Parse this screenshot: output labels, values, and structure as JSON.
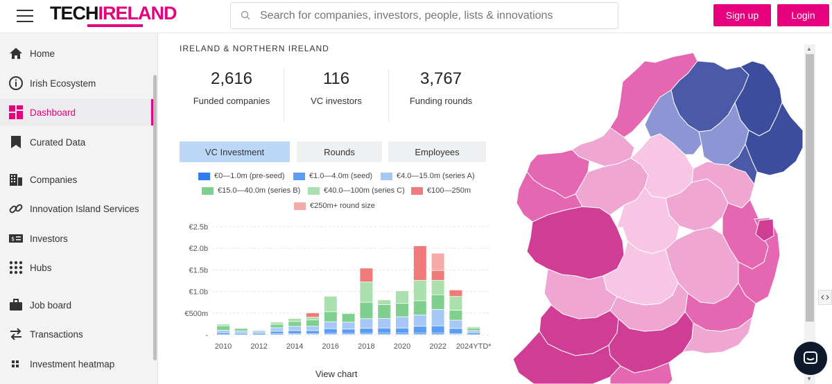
{
  "header": {
    "logo_left": "TECH",
    "logo_right": "IRELAND",
    "search_placeholder": "Search for companies, investors, people, lists & innovations",
    "signup_label": "Sign up",
    "login_label": "Login"
  },
  "sidebar": {
    "items": [
      {
        "label": "Home",
        "icon": "home-icon"
      },
      {
        "label": "Irish Ecosystem",
        "icon": "info-icon"
      },
      {
        "label": "Dashboard",
        "icon": "dashboard-icon",
        "active": true
      },
      {
        "label": "Curated Data",
        "icon": "bookmark-icon"
      },
      {
        "label": "Companies",
        "icon": "building-icon"
      },
      {
        "label": "Innovation Island Services",
        "icon": "link-icon"
      },
      {
        "label": "Investors",
        "icon": "money-icon"
      },
      {
        "label": "Hubs",
        "icon": "grid-dots-icon"
      },
      {
        "label": "Job board",
        "icon": "briefcase-icon"
      },
      {
        "label": "Transactions",
        "icon": "transfer-icon"
      },
      {
        "label": "Investment heatmap",
        "icon": "heatmap-icon"
      }
    ]
  },
  "main": {
    "region_title": "IRELAND & NORTHERN IRELAND",
    "stats": [
      {
        "value": "2,616",
        "caption": "Funded companies"
      },
      {
        "value": "116",
        "caption": "VC investors"
      },
      {
        "value": "3,767",
        "caption": "Funding rounds"
      }
    ],
    "tabs": [
      {
        "label": "VC Investment",
        "active": true
      },
      {
        "label": "Rounds",
        "active": false
      },
      {
        "label": "Employees",
        "active": false
      }
    ],
    "view_chart_label": "View chart"
  },
  "colors": {
    "brand": "#e6007e",
    "preseed": "#2f7cf0",
    "seed": "#5b9df2",
    "seriesA": "#a7c8f7",
    "seriesB": "#7fcf8e",
    "seriesC": "#a9e0ad",
    "r100": "#f07a7a",
    "r250": "#f5a9a9"
  },
  "chart_data": {
    "type": "bar",
    "stacked": true,
    "categories": [
      "2010",
      "2011",
      "2012",
      "2013",
      "2014",
      "2015",
      "2016",
      "2017",
      "2018",
      "2019",
      "2020",
      "2021",
      "2022",
      "2023",
      "2024YTD*"
    ],
    "x_tick_labels": [
      "2010",
      "2012",
      "2014",
      "2016",
      "2018",
      "2020",
      "2022",
      "2024YTD*"
    ],
    "y_tick_labels": [
      "€2.5b",
      "€2.0b",
      "€1.5b",
      "€1.0b",
      "€500m",
      ""
    ],
    "ylim": [
      0,
      2500
    ],
    "ylabel": "",
    "legend": [
      "€0—1.0m (pre-seed)",
      "€1.0—4.0m (seed)",
      "€4.0—15.0m (series A)",
      "€15.0—40.0m (series B)",
      "€40.0—100m (series C)",
      "€100—250m",
      "€250m+ round size"
    ],
    "series": [
      {
        "name": "€0—1.0m (pre-seed)",
        "color": "#2f7cf0",
        "values": [
          10,
          10,
          10,
          15,
          20,
          20,
          25,
          25,
          25,
          30,
          30,
          30,
          30,
          20,
          10
        ]
      },
      {
        "name": "€1.0—4.0m (seed)",
        "color": "#5b9df2",
        "values": [
          40,
          30,
          30,
          60,
          70,
          70,
          110,
          100,
          120,
          120,
          120,
          160,
          170,
          120,
          40
        ]
      },
      {
        "name": "€4.0—15.0m (series A)",
        "color": "#a7c8f7",
        "values": [
          50,
          40,
          40,
          80,
          100,
          100,
          160,
          160,
          220,
          220,
          260,
          260,
          380,
          190,
          40
        ]
      },
      {
        "name": "€15.0—40.0m (series B)",
        "color": "#7fcf8e",
        "values": [
          100,
          60,
          20,
          80,
          110,
          150,
          230,
          200,
          380,
          320,
          310,
          330,
          340,
          230,
          60
        ]
      },
      {
        "name": "€40.0—100m (series C)",
        "color": "#a9e0ad",
        "values": [
          40,
          0,
          0,
          50,
          70,
          60,
          360,
          0,
          470,
          110,
          290,
          470,
          330,
          320,
          30
        ]
      },
      {
        "name": "€100—250m",
        "color": "#f07a7a",
        "values": [
          0,
          0,
          0,
          0,
          0,
          100,
          0,
          0,
          320,
          0,
          0,
          800,
          230,
          150,
          0
        ]
      },
      {
        "name": "€250m+ round size",
        "color": "#f5a9a9",
        "values": [
          0,
          0,
          0,
          0,
          0,
          0,
          0,
          0,
          0,
          0,
          0,
          0,
          400,
          0,
          0
        ]
      }
    ]
  }
}
